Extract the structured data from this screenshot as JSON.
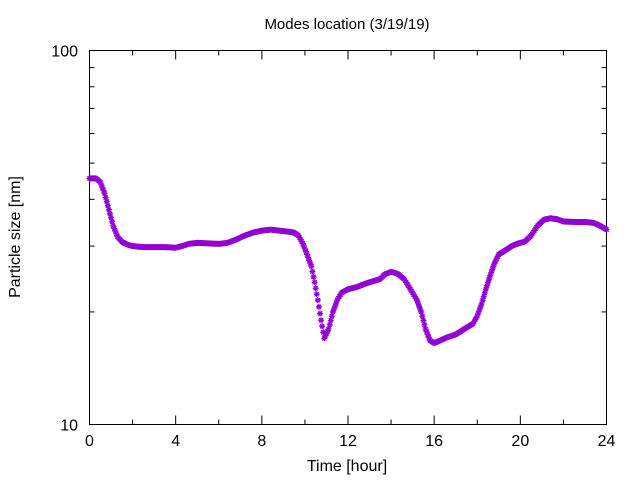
{
  "chart_data": {
    "type": "scatter",
    "title": "Modes location (3/19/19)",
    "xlabel": "Time [hour]",
    "ylabel": "Particle size [nm]",
    "xlim": [
      0,
      24
    ],
    "ylim": [
      10,
      100
    ],
    "y_scale": "log",
    "grid": false,
    "x_ticks": [
      0,
      4,
      8,
      12,
      16,
      20,
      24
    ],
    "y_ticks": [
      10,
      100
    ],
    "x_tick_labels": [
      "0",
      "4",
      "8",
      "12",
      "16",
      "20",
      "24"
    ],
    "y_tick_labels": [
      "10",
      "100"
    ],
    "marker": "star",
    "color": "#9400d3",
    "series": [
      {
        "points": [
          [
            0.0,
            45.5
          ],
          [
            0.3,
            45.5
          ],
          [
            0.5,
            44.5
          ],
          [
            0.7,
            41.5
          ],
          [
            0.9,
            37.5
          ],
          [
            1.1,
            34.0
          ],
          [
            1.3,
            31.8
          ],
          [
            1.5,
            30.8
          ],
          [
            1.8,
            30.2
          ],
          [
            2.0,
            30.0
          ],
          [
            2.5,
            29.8
          ],
          [
            3.0,
            29.8
          ],
          [
            3.5,
            29.8
          ],
          [
            4.0,
            29.7
          ],
          [
            4.3,
            30.0
          ],
          [
            4.6,
            30.4
          ],
          [
            5.0,
            30.6
          ],
          [
            5.5,
            30.5
          ],
          [
            6.0,
            30.4
          ],
          [
            6.4,
            30.6
          ],
          [
            6.8,
            31.2
          ],
          [
            7.2,
            32.0
          ],
          [
            7.6,
            32.6
          ],
          [
            8.0,
            33.0
          ],
          [
            8.4,
            33.2
          ],
          [
            8.8,
            33.0
          ],
          [
            9.2,
            32.8
          ],
          [
            9.5,
            32.6
          ],
          [
            9.7,
            32.0
          ],
          [
            9.9,
            30.5
          ],
          [
            10.1,
            28.5
          ],
          [
            10.3,
            26.5
          ],
          [
            10.45,
            24.0
          ],
          [
            10.6,
            21.5
          ],
          [
            10.75,
            19.0
          ],
          [
            10.9,
            17.0
          ],
          [
            11.1,
            18.0
          ],
          [
            11.3,
            20.0
          ],
          [
            11.5,
            21.5
          ],
          [
            11.7,
            22.5
          ],
          [
            12.0,
            23.0
          ],
          [
            12.4,
            23.3
          ],
          [
            12.8,
            23.8
          ],
          [
            13.2,
            24.2
          ],
          [
            13.5,
            24.5
          ],
          [
            13.7,
            25.2
          ],
          [
            14.0,
            25.6
          ],
          [
            14.3,
            25.3
          ],
          [
            14.6,
            24.5
          ],
          [
            14.9,
            23.0
          ],
          [
            15.2,
            21.5
          ],
          [
            15.4,
            20.0
          ],
          [
            15.6,
            18.0
          ],
          [
            15.8,
            16.8
          ],
          [
            16.0,
            16.5
          ],
          [
            16.3,
            16.8
          ],
          [
            16.6,
            17.1
          ],
          [
            17.0,
            17.4
          ],
          [
            17.4,
            18.0
          ],
          [
            17.8,
            18.6
          ],
          [
            18.0,
            19.5
          ],
          [
            18.2,
            21.0
          ],
          [
            18.4,
            23.0
          ],
          [
            18.6,
            25.0
          ],
          [
            18.8,
            27.0
          ],
          [
            19.0,
            28.5
          ],
          [
            19.3,
            29.2
          ],
          [
            19.6,
            30.0
          ],
          [
            19.9,
            30.5
          ],
          [
            20.2,
            30.8
          ],
          [
            20.5,
            32.0
          ],
          [
            20.8,
            34.0
          ],
          [
            21.1,
            35.3
          ],
          [
            21.4,
            35.6
          ],
          [
            21.7,
            35.4
          ],
          [
            22.0,
            34.9
          ],
          [
            22.5,
            34.8
          ],
          [
            23.0,
            34.8
          ],
          [
            23.4,
            34.6
          ],
          [
            23.7,
            34.0
          ],
          [
            24.0,
            33.2
          ]
        ]
      }
    ]
  }
}
